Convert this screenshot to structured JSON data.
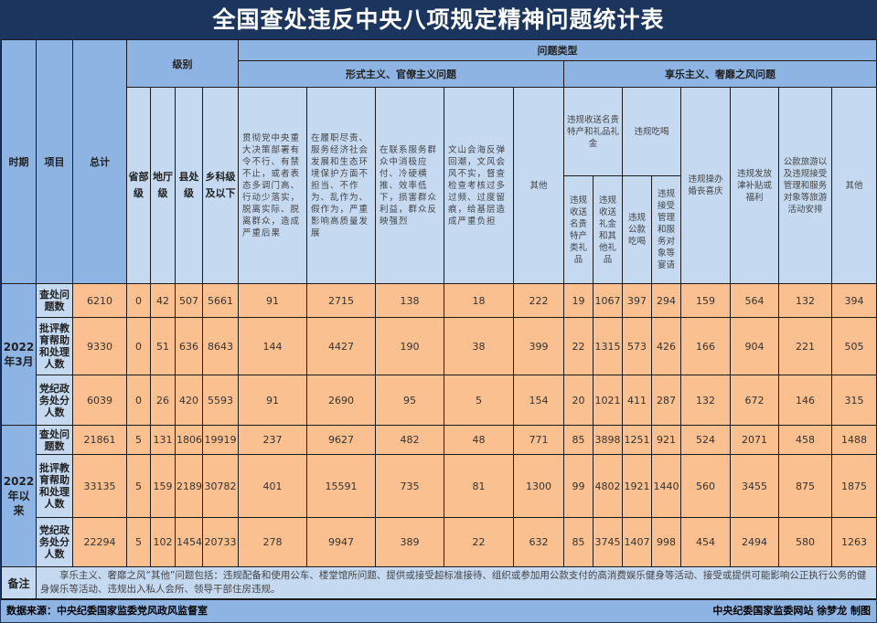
{
  "title": "全国查处违反中央八项规定精神问题统计表",
  "header": {
    "period": "时期",
    "item": "项目",
    "total": "总计",
    "level": "级别",
    "problem_type": "问题类型",
    "levels": [
      "省部级",
      "地厅级",
      "县处级",
      "乡科级及以下"
    ],
    "formalism": {
      "label": "形式主义、官僚主义问题",
      "cols": [
        "贯彻党中央重大决策部署有令不行、有禁不止，或者表态多调门高、行动少落实，脱离实际、脱离群众，造成严重后果",
        "在履职尽责、服务经济社会发展和生态环境保护方面不担当、不作为、乱作为、假作为，严重影响高质量发展",
        "在联系服务群众中消极应付、冷硬横推、效率低下，损害群众利益，群众反映强烈",
        "文山会海反弹回潮，文风会风不实，督查检查考核过多过频、过度留痕，给基层造成严重负担",
        "其他"
      ]
    },
    "hedonism": {
      "label": "享乐主义、奢靡之风问题",
      "gifts": {
        "label": "违规收送名贵特产和礼品礼金",
        "subs": [
          "违规收送名贵特产类礼品",
          "违规收送礼金和其他礼品"
        ]
      },
      "dining": {
        "label": "违规吃喝",
        "subs": [
          "违规公款吃喝",
          "违规接受管理和服务对象等宴请"
        ]
      },
      "cols": [
        "违规操办婚丧喜庆",
        "违规发放津补贴或福利",
        "公款旅游以及违规接受管理和服务对象等旅游活动安排",
        "其他"
      ]
    }
  },
  "periods": [
    {
      "label": "2022年3月",
      "rows": [
        {
          "item": "查处问题数",
          "values": [
            6210,
            0,
            42,
            507,
            5661,
            91,
            2715,
            138,
            18,
            222,
            19,
            1067,
            397,
            294,
            159,
            564,
            132,
            394
          ]
        },
        {
          "item": "批评教育帮助和处理人数",
          "values": [
            9330,
            0,
            51,
            636,
            8643,
            144,
            4427,
            190,
            38,
            399,
            22,
            1315,
            573,
            426,
            166,
            904,
            221,
            505
          ]
        },
        {
          "item": "党纪政务处分人数",
          "values": [
            6039,
            0,
            26,
            420,
            5593,
            91,
            2690,
            95,
            5,
            154,
            20,
            1021,
            411,
            287,
            132,
            672,
            146,
            315
          ]
        }
      ]
    },
    {
      "label": "2022年以来",
      "rows": [
        {
          "item": "查处问题数",
          "values": [
            21861,
            5,
            131,
            1806,
            19919,
            237,
            9627,
            482,
            48,
            771,
            85,
            3898,
            1251,
            921,
            524,
            2071,
            458,
            1488
          ]
        },
        {
          "item": "批评教育帮助和处理人数",
          "values": [
            33135,
            5,
            159,
            2189,
            30782,
            401,
            15591,
            735,
            81,
            1300,
            99,
            4802,
            1921,
            1440,
            560,
            3455,
            875,
            1875
          ]
        },
        {
          "item": "党纪政务处分人数",
          "values": [
            22294,
            5,
            102,
            1454,
            20733,
            278,
            9947,
            389,
            22,
            632,
            85,
            3745,
            1407,
            998,
            454,
            2494,
            580,
            1263
          ]
        }
      ]
    }
  ],
  "note": {
    "label": "备注",
    "text": "享乐主义、奢靡之风“其他”问题包括：违规配备和使用公车、楼堂馆所问题、提供或接受超标准接待、组织或参加用公款支付的高消费娱乐健身等活动、接受或提供可能影响公正执行公务的健身娱乐等活动、违规出入私人会所、领导干部住房违规。"
  },
  "footer": {
    "source": "数据来源：中央纪委国家监委党风政风监督室",
    "credit": "中央纪委国家监委网站 徐梦龙 制图"
  },
  "colors": {
    "title_bg": "#1c355e",
    "header_dark": "#8db4e2",
    "header_light": "#c5d9f1",
    "data_bg": "#fac090"
  }
}
